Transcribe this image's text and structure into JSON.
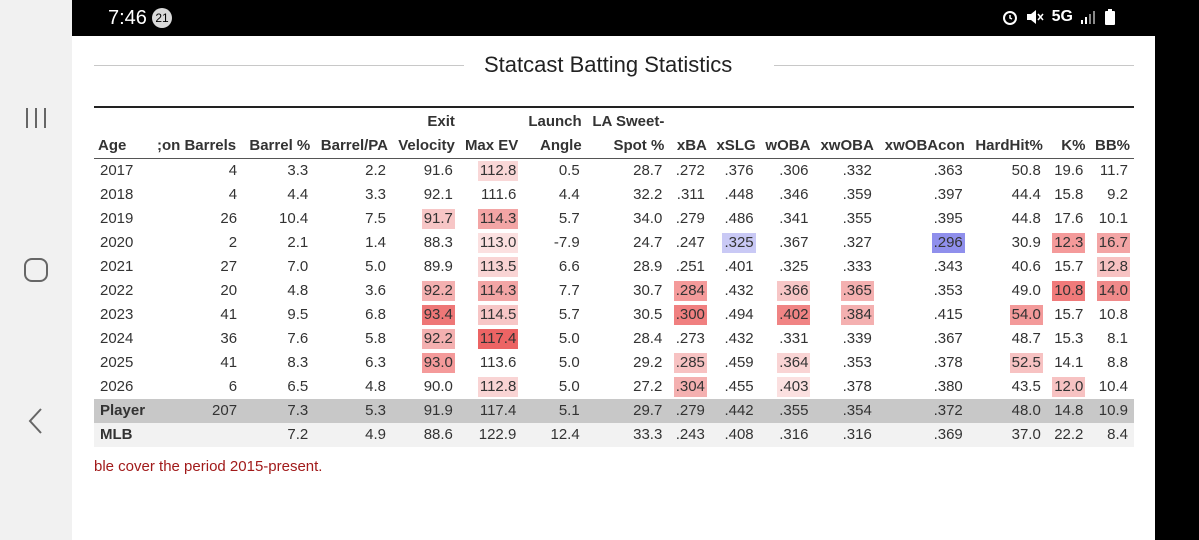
{
  "status_bar": {
    "time": "7:46",
    "notification_count": "21",
    "network": "5G"
  },
  "page": {
    "title": "Statcast Batting Statistics",
    "footnote": "ble cover the period 2015-present."
  },
  "table": {
    "headers": [
      "Age",
      "Season Barrels",
      "Barrel %",
      "Barrel/PA",
      "Exit Velocity",
      "Max EV",
      "Launch Angle",
      "LA Sweet-Spot %",
      "xBA",
      "xSLG",
      "wOBA",
      "xwOBA",
      "xwOBAcon",
      "HardHit%",
      "K%",
      "BB%"
    ],
    "header_display": {
      "age": "Age",
      "barrels": ";on Barrels",
      "barrel_pct": "Barrel %",
      "barrel_pa": "Barrel/PA",
      "ev_top": "Exit",
      "ev_bottom": "Velocity",
      "max_ev": "Max EV",
      "la_top": "Launch",
      "la_bottom": "Angle",
      "sweet_top": "LA Sweet-",
      "sweet_bottom": "Spot %",
      "xba": "xBA",
      "xslg": "xSLG",
      "woba": "wOBA",
      "xwoba": "xwOBA",
      "xwobacon": "xwOBAcon",
      "hardhit": "HardHit%",
      "k": "K%",
      "bb": "BB%"
    },
    "rows": [
      [
        "2017",
        "4",
        "3.3",
        "2.2",
        "91.6",
        "112.8",
        "0.5",
        "28.7",
        ".272",
        ".376",
        ".306",
        ".332",
        ".363",
        "50.8",
        "19.6",
        "11.7"
      ],
      [
        "2018",
        "4",
        "4.4",
        "3.3",
        "92.1",
        "111.6",
        "4.4",
        "32.2",
        ".311",
        ".448",
        ".346",
        ".359",
        ".397",
        "44.4",
        "15.8",
        "9.2"
      ],
      [
        "2019",
        "26",
        "10.4",
        "7.5",
        "91.7",
        "114.3",
        "5.7",
        "34.0",
        ".279",
        ".486",
        ".341",
        ".355",
        ".395",
        "44.8",
        "17.6",
        "10.1"
      ],
      [
        "2020",
        "2",
        "2.1",
        "1.4",
        "88.3",
        "113.0",
        "-7.9",
        "24.7",
        ".247",
        ".325",
        ".367",
        ".327",
        ".296",
        "30.9",
        "12.3",
        "16.7"
      ],
      [
        "2021",
        "27",
        "7.0",
        "5.0",
        "89.9",
        "113.5",
        "6.6",
        "28.9",
        ".251",
        ".401",
        ".325",
        ".333",
        ".343",
        "40.6",
        "15.7",
        "12.8"
      ],
      [
        "2022",
        "20",
        "4.8",
        "3.6",
        "92.2",
        "114.3",
        "7.7",
        "30.7",
        ".284",
        ".432",
        ".366",
        ".365",
        ".353",
        "49.0",
        "10.8",
        "14.0"
      ],
      [
        "2023",
        "41",
        "9.5",
        "6.8",
        "93.4",
        "114.5",
        "5.7",
        "30.5",
        ".300",
        ".494",
        ".402",
        ".384",
        ".415",
        "54.0",
        "15.7",
        "10.8"
      ],
      [
        "2024",
        "36",
        "7.6",
        "5.8",
        "92.2",
        "117.4",
        "5.0",
        "28.4",
        ".273",
        ".432",
        ".331",
        ".339",
        ".367",
        "48.7",
        "15.3",
        "8.1"
      ],
      [
        "2025",
        "41",
        "8.3",
        "6.3",
        "93.0",
        "113.6",
        "5.0",
        "29.2",
        ".285",
        ".459",
        ".364",
        ".353",
        ".378",
        "52.5",
        "14.1",
        "8.8"
      ],
      [
        "2026",
        "6",
        "6.5",
        "4.8",
        "90.0",
        "112.8",
        "5.0",
        "27.2",
        ".304",
        ".455",
        ".403",
        ".378",
        ".380",
        "43.5",
        "12.0",
        "10.4"
      ]
    ],
    "player": [
      "Player",
      "207",
      "7.3",
      "5.3",
      "91.9",
      "117.4",
      "5.1",
      "29.7",
      ".279",
      ".442",
      ".355",
      ".354",
      ".372",
      "48.0",
      "14.8",
      "10.9"
    ],
    "mlb": [
      "MLB",
      "",
      "7.2",
      "4.9",
      "88.6",
      "122.9",
      "12.4",
      "33.3",
      ".243",
      ".408",
      ".316",
      ".316",
      ".369",
      "37.0",
      "22.2",
      "8.4"
    ],
    "highlights": {
      "0-5": "#f9d7d7",
      "2-4": "#f7c6c6",
      "2-5": "#f3a5a5",
      "3-5": "#fbe0e0",
      "3-9": "#c9c9f5",
      "3-12": "#8f8fec",
      "3-14": "#f49a9a",
      "3-15": "#f3a5a5",
      "4-5": "#f9d4d4",
      "4-15": "#f7c2c2",
      "5-4": "#f4b0b0",
      "5-5": "#f3a5a5",
      "5-8": "#f49a9a",
      "5-10": "#f7c6c6",
      "5-11": "#f4b0b0",
      "5-14": "#f07a7a",
      "5-15": "#f08a8a",
      "6-4": "#ee7777",
      "6-5": "#f7c6c6",
      "6-8": "#f08080",
      "6-10": "#f08484",
      "6-11": "#f4b0b0",
      "6-13": "#f39a9a",
      "7-4": "#f4b0b0",
      "7-5": "#ec6464",
      "8-4": "#f49a9a",
      "8-8": "#f7c2c2",
      "8-10": "#f9d4d4",
      "8-13": "#f7c2c2",
      "9-5": "#f9d4d4",
      "9-8": "#f4b0b0",
      "9-10": "#fbe0e0",
      "9-14": "#f7c2c2"
    }
  }
}
